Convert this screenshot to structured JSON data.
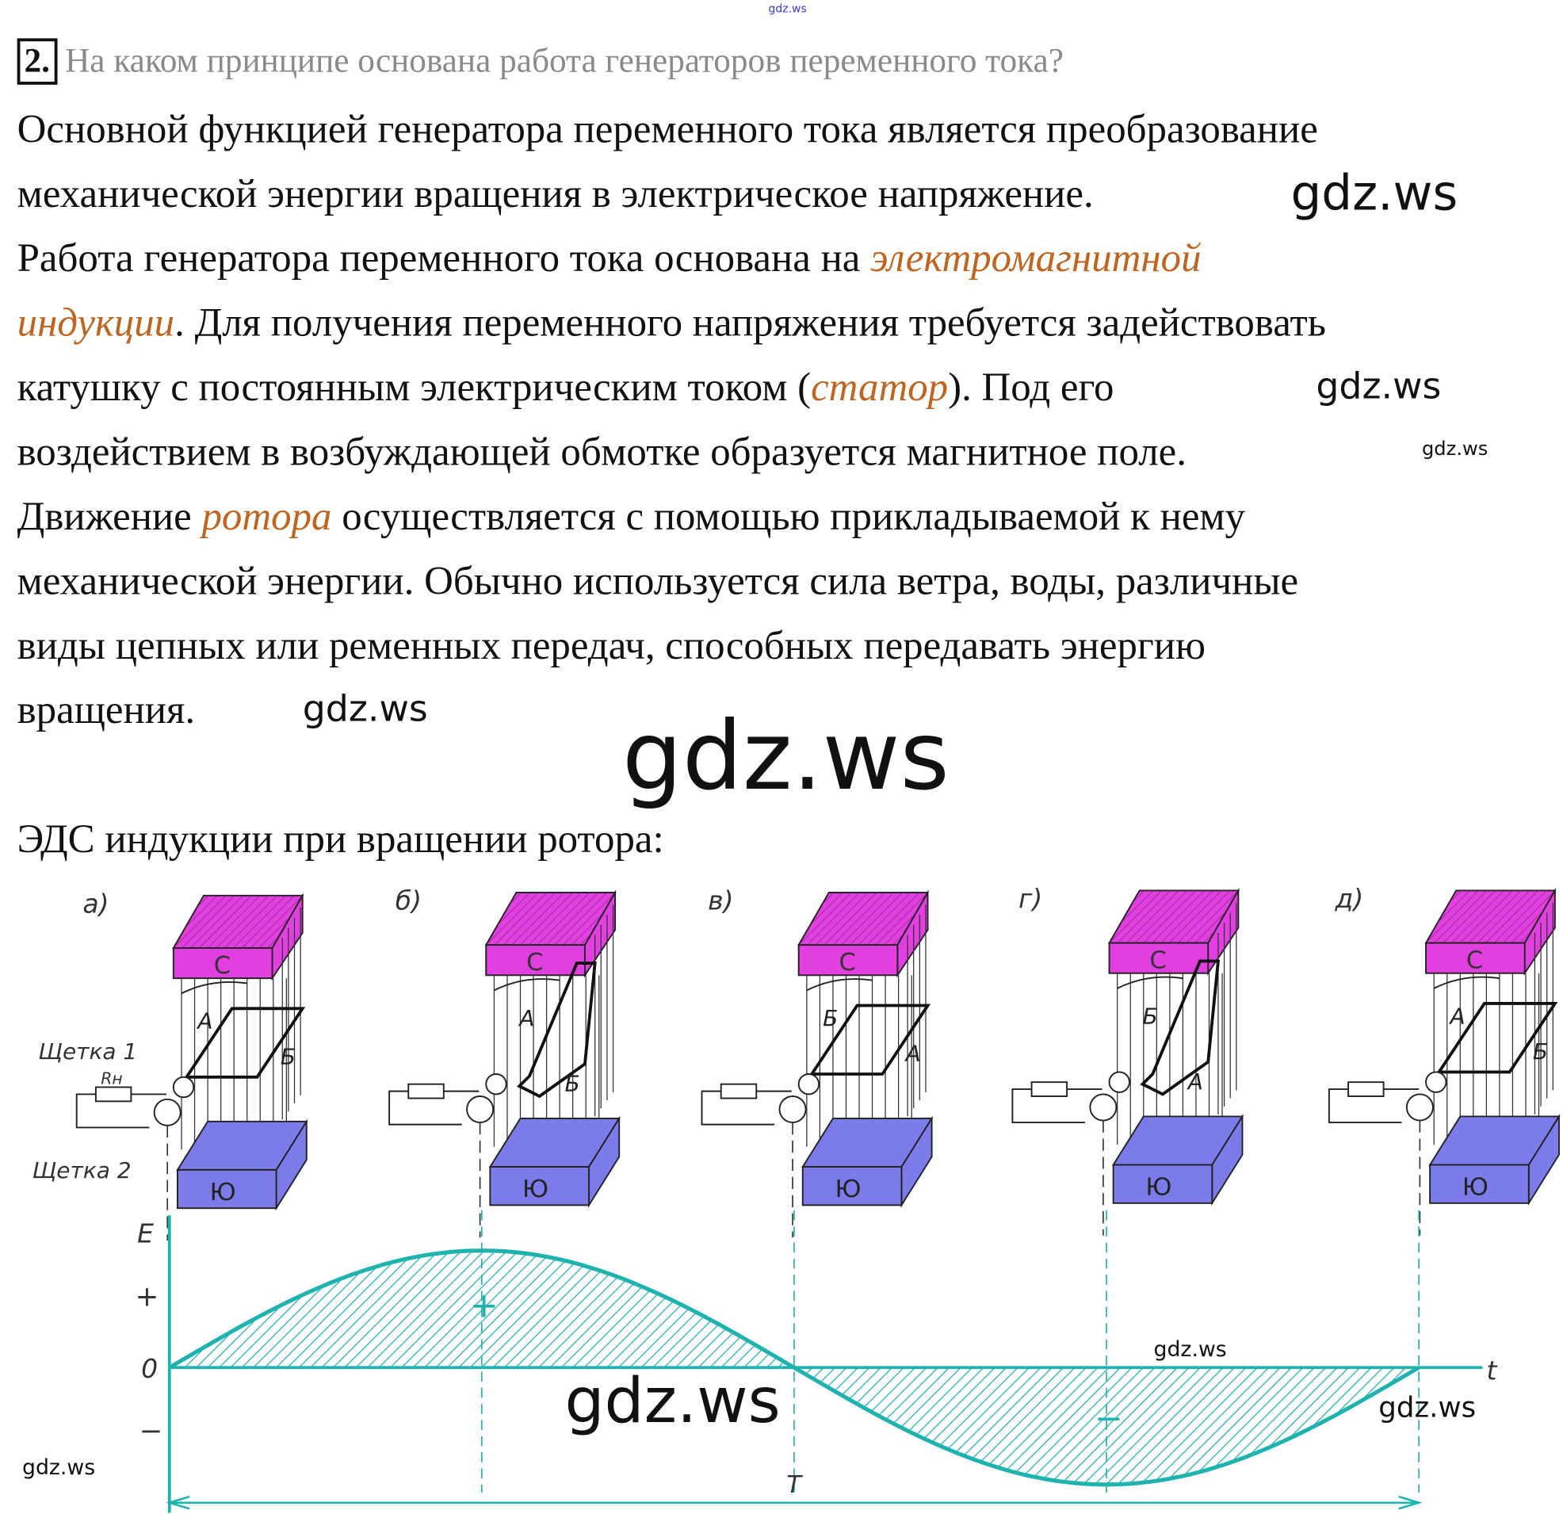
{
  "watermarks": {
    "top": "gdz.ws",
    "w1": "gdz.ws",
    "w2": "gdz.ws",
    "w3": "gdz.ws",
    "w4": "gdz.ws",
    "w5": "gdz.ws",
    "w6": "gdz.ws",
    "w7": "gdz.ws",
    "w8": "gdz.ws",
    "w9": "gdz.ws"
  },
  "question": {
    "number": "2.",
    "text": "На каком принципе основана работа генераторов переменного тока?"
  },
  "answer": {
    "l1": "Основной функцией генератора переменного тока является преобразование",
    "l2": "механической энергии вращения в электрическое напряжение.",
    "l3a": "Работа генератора переменного тока основана на ",
    "l3b": "электромагнитной",
    "l4a": "индукции",
    "l4b": ". Для получения переменного напряжения требуется задействовать",
    "l5a": "катушку с постоянным электрическим током (",
    "l5b": "статор",
    "l5c": "). Под его",
    "l6": "воздействием в возбуждающей обмотке образуется магнитное поле.",
    "l7a": "Движение ",
    "l7b": "ротора",
    "l7c": " осуществляется с помощью прикладываемой к нему",
    "l8": "механической энергии. Обычно используется сила ветра, воды, различные",
    "l9": "виды цепных или ременных передач, способных передавать энергию",
    "l10": "вращения.",
    "caption": "ЭДС индукции при вращении ротора:"
  },
  "colors": {
    "highlight": "#c0651f",
    "north": "#e23fe0",
    "south": "#7b7bea",
    "curve": "#1fb3b0"
  },
  "figure": {
    "panels": [
      {
        "label": "а)",
        "north": "С",
        "south": "Ю",
        "side1": "А",
        "side2": "Б"
      },
      {
        "label": "б)",
        "north": "С",
        "south": "Ю",
        "side1": "А",
        "side2": "Б"
      },
      {
        "label": "в)",
        "north": "С",
        "south": "Ю",
        "side1": "Б",
        "side2": "А"
      },
      {
        "label": "г)",
        "north": "С",
        "south": "Ю",
        "side1": "Б",
        "side2": "А"
      },
      {
        "label": "д)",
        "north": "С",
        "south": "Ю",
        "side1": "А",
        "side2": "Б"
      }
    ],
    "brush1": "Щетка 1",
    "brush2": "Щетка 2",
    "resistor": "Rн"
  },
  "chart_data": {
    "type": "line",
    "title": "",
    "ylabel": "E",
    "xlabel": "t",
    "ytick_labels": [
      "+",
      "0",
      "−"
    ],
    "period_label": "T",
    "region_labels": [
      "+",
      "−"
    ],
    "x": [
      0,
      0.25,
      0.5,
      0.75,
      1
    ],
    "values": [
      0,
      1,
      0,
      -1,
      0
    ],
    "function": "sin(2πt/T)",
    "ylim": [
      -1.1,
      1.1
    ]
  }
}
